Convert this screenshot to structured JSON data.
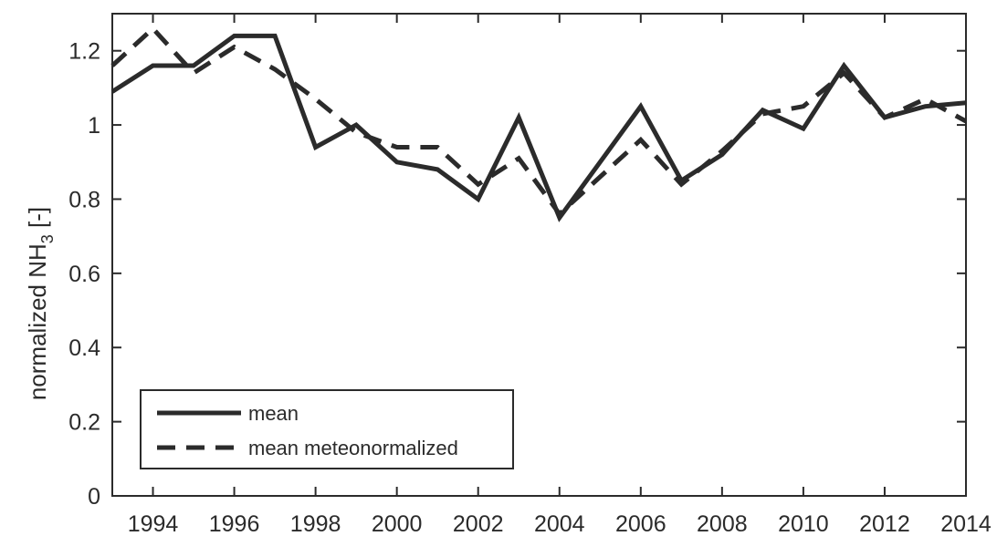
{
  "chart_data": {
    "type": "line",
    "title": "",
    "xlabel": "",
    "ylabel_main": "normalized NH",
    "ylabel_sub": "3",
    "ylabel_suffix": " [-]",
    "xlim": [
      1993,
      2014
    ],
    "ylim": [
      0,
      1.3
    ],
    "x_ticks": [
      1994,
      1996,
      1998,
      2000,
      2002,
      2004,
      2006,
      2008,
      2010,
      2012,
      2014
    ],
    "y_ticks": [
      0,
      0.2,
      0.4,
      0.6,
      0.8,
      1,
      1.2
    ],
    "y_tick_labels": [
      "0",
      "0.2",
      "0.4",
      "0.6",
      "0.8",
      "1",
      "1.2"
    ],
    "grid": false,
    "legend_position": "bottom-left",
    "series": [
      {
        "name": "mean",
        "style": "solid",
        "color": "#2b2b2b",
        "x": [
          1993,
          1994,
          1995,
          1996,
          1997,
          1998,
          1999,
          2000,
          2001,
          2002,
          2003,
          2004,
          2005,
          2006,
          2007,
          2008,
          2009,
          2010,
          2011,
          2012,
          2013,
          2014
        ],
        "values": [
          1.09,
          1.16,
          1.16,
          1.24,
          1.24,
          0.94,
          1.0,
          0.9,
          0.88,
          0.8,
          1.02,
          0.75,
          0.9,
          1.05,
          0.85,
          0.92,
          1.04,
          0.99,
          1.16,
          1.02,
          1.05,
          1.06
        ]
      },
      {
        "name": "mean meteonormalized",
        "style": "dashed",
        "color": "#2b2b2b",
        "x": [
          1993,
          1994,
          1995,
          1996,
          1997,
          1998,
          1999,
          2000,
          2001,
          2002,
          2003,
          2004,
          2005,
          2006,
          2007,
          2008,
          2009,
          2010,
          2011,
          2012,
          2013,
          2014
        ],
        "values": [
          1.16,
          1.26,
          1.14,
          1.21,
          1.15,
          1.07,
          0.98,
          0.94,
          0.94,
          0.84,
          0.91,
          0.76,
          0.86,
          0.96,
          0.84,
          0.93,
          1.03,
          1.05,
          1.14,
          1.02,
          1.07,
          1.01
        ]
      }
    ]
  }
}
